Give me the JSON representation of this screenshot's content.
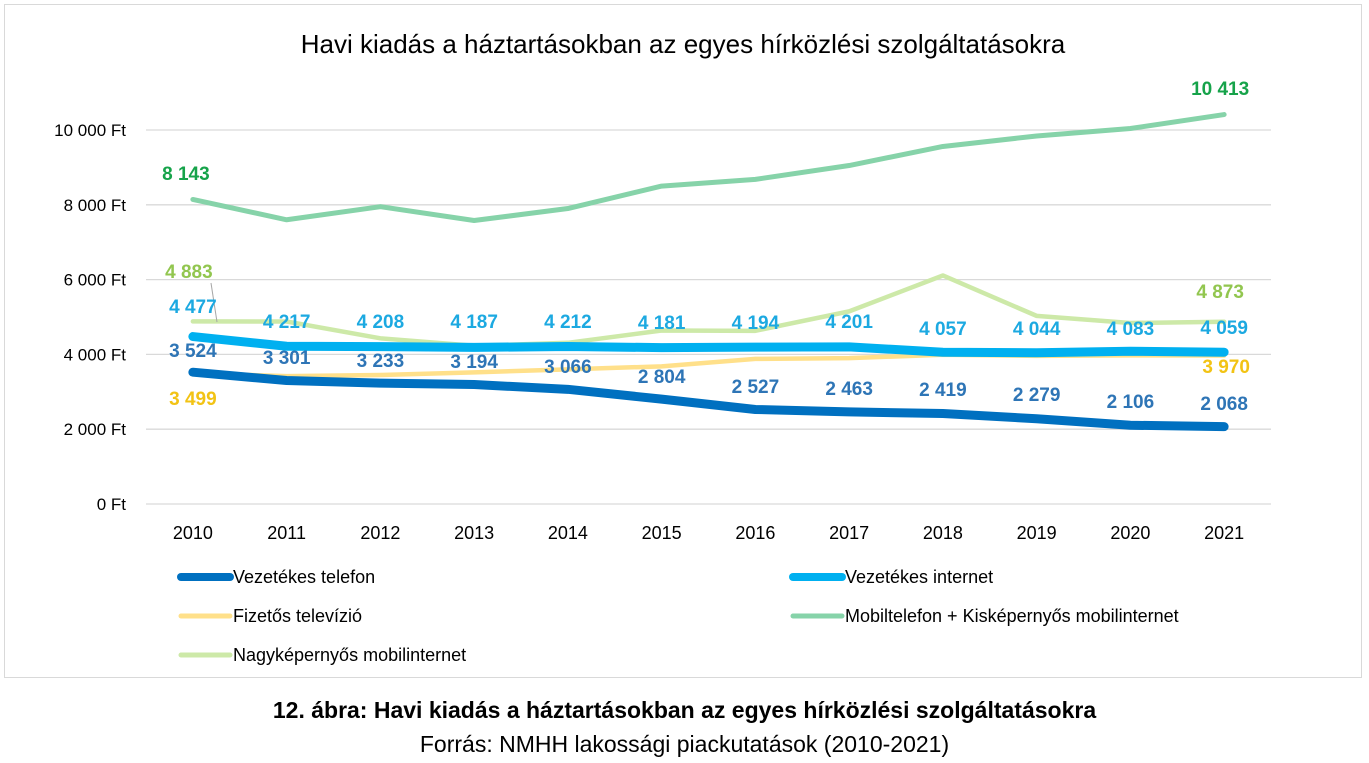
{
  "chart_data": {
    "type": "line",
    "title": "Havi kiadás a háztartásokban az egyes hírközlési szolgáltatásokra",
    "xlabel": "",
    "ylabel": "",
    "categories": [
      "2010",
      "2011",
      "2012",
      "2013",
      "2014",
      "2015",
      "2016",
      "2017",
      "2018",
      "2019",
      "2020",
      "2021"
    ],
    "ylim": [
      0,
      10000
    ],
    "yticks": [
      {
        "value": 0,
        "label": "0 Ft"
      },
      {
        "value": 2000,
        "label": "2 000 Ft"
      },
      {
        "value": 4000,
        "label": "4 000 Ft"
      },
      {
        "value": 6000,
        "label": "6 000 Ft"
      },
      {
        "value": 8000,
        "label": "8 000 Ft"
      },
      {
        "value": 10000,
        "label": "10 000 Ft"
      }
    ],
    "grid": true,
    "legend_position": "bottom",
    "series": [
      {
        "name": "Vezetékes telefon",
        "color": "#0070c0",
        "label_color": "#2e75b6",
        "values": [
          3524,
          3301,
          3233,
          3194,
          3066,
          2804,
          2527,
          2463,
          2419,
          2279,
          2106,
          2068
        ],
        "labels": [
          "3 524",
          "3 301",
          "3 233",
          "3 194",
          "3 066",
          "2 804",
          "2 527",
          "2 463",
          "2 419",
          "2 279",
          "2 106",
          "2 068"
        ]
      },
      {
        "name": "Vezetékes internet",
        "color": "#00b0f0",
        "label_color": "#1ca9e1",
        "values": [
          4477,
          4217,
          4208,
          4187,
          4212,
          4181,
          4194,
          4201,
          4057,
          4044,
          4083,
          4059
        ],
        "labels": [
          "4 477",
          "4 217",
          "4 208",
          "4 187",
          "4 212",
          "4 181",
          "4 194",
          "4 201",
          "4 057",
          "4 044",
          "4 083",
          "4 059"
        ]
      },
      {
        "name": "Fizetős televízió",
        "color": "#ffe08a",
        "label_color": "#f2c314",
        "values": [
          3499,
          3420,
          3450,
          3520,
          3600,
          3680,
          3880,
          3900,
          3990,
          3960,
          3975,
          3970
        ],
        "labels": [
          "3 499",
          "3 970"
        ]
      },
      {
        "name": "Mobiltelefon + Kisképernyős mobilinternet",
        "color": "#86d3a9",
        "label_color": "#16a34a",
        "values": [
          8143,
          7600,
          7950,
          7580,
          7900,
          8500,
          8680,
          9050,
          9560,
          9840,
          10040,
          10413
        ],
        "labels": [
          "8 143",
          "10 413"
        ]
      },
      {
        "name": "Nagyképernyős mobilinternet",
        "color": "#cde9a8",
        "label_color": "#92c64f",
        "values": [
          4883,
          4880,
          4430,
          4230,
          4310,
          4640,
          4630,
          5150,
          6110,
          5030,
          4840,
          4873
        ],
        "labels": [
          "4 883",
          "4 873"
        ]
      }
    ]
  },
  "caption": {
    "title": "12. ábra: Havi kiadás a háztartásokban az egyes hírközlési szolgáltatásokra",
    "source": "Forrás: NMHH lakossági piackutatások (2010-2021)"
  }
}
